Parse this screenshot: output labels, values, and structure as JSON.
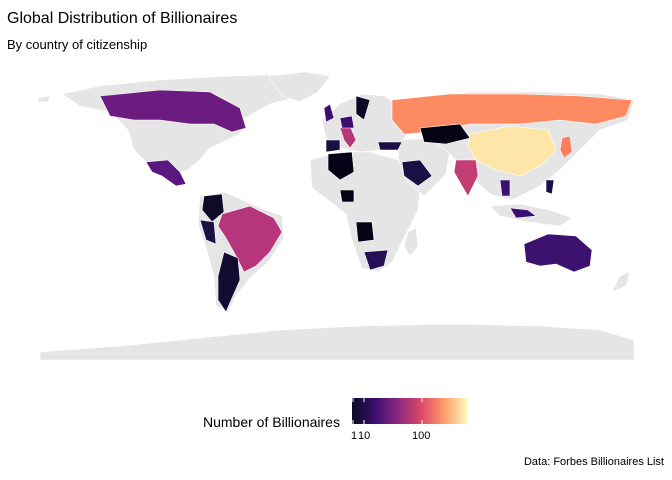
{
  "title": "Global Distribution of Billionaires",
  "subtitle": "By country of citizenship",
  "caption": "Data: Forbes Billionaires List",
  "legend": {
    "label": "Number of Billionaires",
    "ticks": [
      "1",
      "10",
      "100"
    ],
    "scale": "log",
    "palette": "magma",
    "colors": [
      "#0b0924",
      "#3b0f70",
      "#8c2981",
      "#de4968",
      "#fe9f6d",
      "#fcfdbf"
    ]
  },
  "colors": {
    "no_data": "#e5e5e5",
    "border": "#ffffff"
  },
  "chart_data": {
    "type": "choropleth",
    "fill_variable": "Number of Billionaires",
    "scale": "log",
    "countries": [
      {
        "name": "China",
        "level": "highest",
        "color": "#fde6a8"
      },
      {
        "name": "Russia",
        "level": "high",
        "color": "#fd8a60"
      },
      {
        "name": "Japan",
        "level": "high",
        "color": "#fd7d5c"
      },
      {
        "name": "Brazil",
        "level": "medium-high",
        "color": "#b5367a"
      },
      {
        "name": "India",
        "level": "medium-high",
        "color": "#c13f72"
      },
      {
        "name": "Italy",
        "level": "medium-high",
        "color": "#b5367a"
      },
      {
        "name": "Canada",
        "level": "medium",
        "color": "#6a1c81"
      },
      {
        "name": "Mexico",
        "level": "medium",
        "color": "#5a1780"
      },
      {
        "name": "Australia",
        "level": "medium",
        "color": "#3d1170"
      },
      {
        "name": "Argentina",
        "level": "low",
        "color": "#120d30"
      },
      {
        "name": "Algeria",
        "level": "low",
        "color": "#050416"
      },
      {
        "name": "Angola",
        "level": "low",
        "color": "#050416"
      },
      {
        "name": "Kazakhstan",
        "level": "low",
        "color": "#050416"
      },
      {
        "name": "Saudi Arabia",
        "level": "low",
        "color": "#1a1044"
      },
      {
        "name": "South Africa",
        "level": "low",
        "color": "#261055"
      }
    ]
  }
}
